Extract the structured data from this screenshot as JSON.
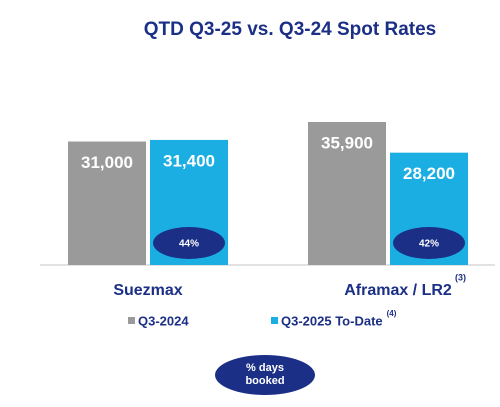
{
  "chart_data": {
    "type": "bar",
    "title": "QTD Q3-25 vs. Q3-24 Spot Rates",
    "categories": [
      "Suezmax",
      "Aframax / LR2"
    ],
    "category_notes": [
      null,
      "(3)"
    ],
    "series": [
      {
        "name": "Q3-2024",
        "color": "#9a9a9a",
        "values": [
          31000,
          35900
        ],
        "value_labels": [
          "31,000",
          "35,900"
        ]
      },
      {
        "name": "Q3-2025 To-Date",
        "note": "(4)",
        "color": "#1aaee3",
        "values": [
          31400,
          28200
        ],
        "value_labels": [
          "31,400",
          "28,200"
        ],
        "booked": [
          44,
          42
        ],
        "booked_labels": [
          "44%",
          "42%"
        ]
      }
    ],
    "booked_legend": "% days booked"
  }
}
